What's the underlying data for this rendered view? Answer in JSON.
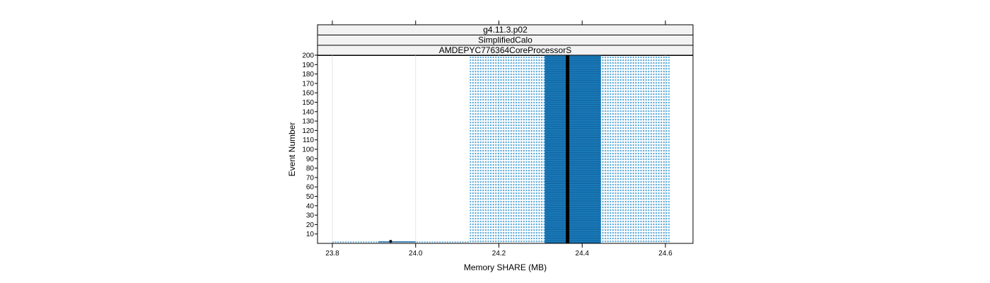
{
  "chart_data": {
    "type": "scatter",
    "title": "",
    "xlabel": "Memory SHARE (MB)",
    "ylabel": "Event Number",
    "xlim": [
      23.8,
      24.7
    ],
    "ylim": [
      0,
      200
    ],
    "x_ticks": [
      23.8,
      24.0,
      24.2,
      24.4,
      24.6
    ],
    "x_tick_labels": [
      "23.8",
      "24.0",
      "24.2",
      "24.4",
      "24.6"
    ],
    "y_ticks": [
      10,
      20,
      30,
      40,
      50,
      60,
      70,
      80,
      90,
      100,
      110,
      120,
      130,
      140,
      150,
      160,
      170,
      180,
      190,
      200
    ],
    "y_tick_labels": [
      "10",
      "20",
      "30",
      "40",
      "50",
      "60",
      "70",
      "80",
      "90",
      "100",
      "110",
      "120",
      "130",
      "140",
      "150",
      "160",
      "170",
      "180",
      "190",
      "200"
    ],
    "strips": [
      "g4.11.3.p02",
      "SimplifiedCalo",
      "AMDEPYC776364CoreProcessorS"
    ],
    "grid": true,
    "regions": [
      {
        "x_from": 24.13,
        "x_to": 24.61,
        "y_from": 1,
        "y_to": 200,
        "density": "light"
      },
      {
        "x_from": 24.31,
        "x_to": 24.445,
        "y_from": 1,
        "y_to": 200,
        "density": "dense"
      }
    ],
    "median_line_x": 24.365,
    "low_event_segment": {
      "x_from": 23.8,
      "x_to": 24.13,
      "y": 1
    },
    "low_event_dense_segment": {
      "x_from": 23.91,
      "x_to": 24.0,
      "y": 1
    },
    "low_event_point": {
      "x": 23.94,
      "y": 1
    },
    "colors": {
      "point": "#0080c0",
      "median": "#000000",
      "strip_bg": "#f2f2f2",
      "grid": "#e6e6e6"
    }
  }
}
